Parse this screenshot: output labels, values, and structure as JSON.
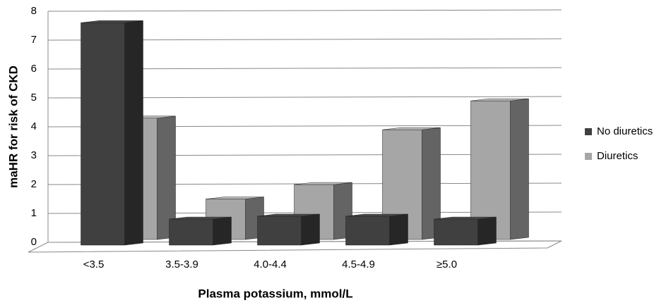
{
  "chart_data": {
    "type": "bar3d",
    "x_label": "Plasma potassium, mmol/L",
    "y_label": "maHR for risk of CKD",
    "categories": [
      "<3.5",
      "3.5-3.9",
      "4.0-4.4",
      "4.5-4.9",
      "≥5.0"
    ],
    "series": [
      {
        "name": "No diuretics",
        "color": "#404040",
        "values": [
          7.7,
          0.9,
          1.0,
          1.0,
          0.9
        ]
      },
      {
        "name": "Diuretics",
        "color": "#a6a6a6",
        "values": [
          4.2,
          1.4,
          1.9,
          3.8,
          4.8
        ]
      }
    ],
    "ylim": [
      0,
      8
    ],
    "yticks": [
      0,
      1,
      2,
      3,
      4,
      5,
      6,
      7,
      8
    ],
    "grid": true,
    "legend": "right"
  }
}
